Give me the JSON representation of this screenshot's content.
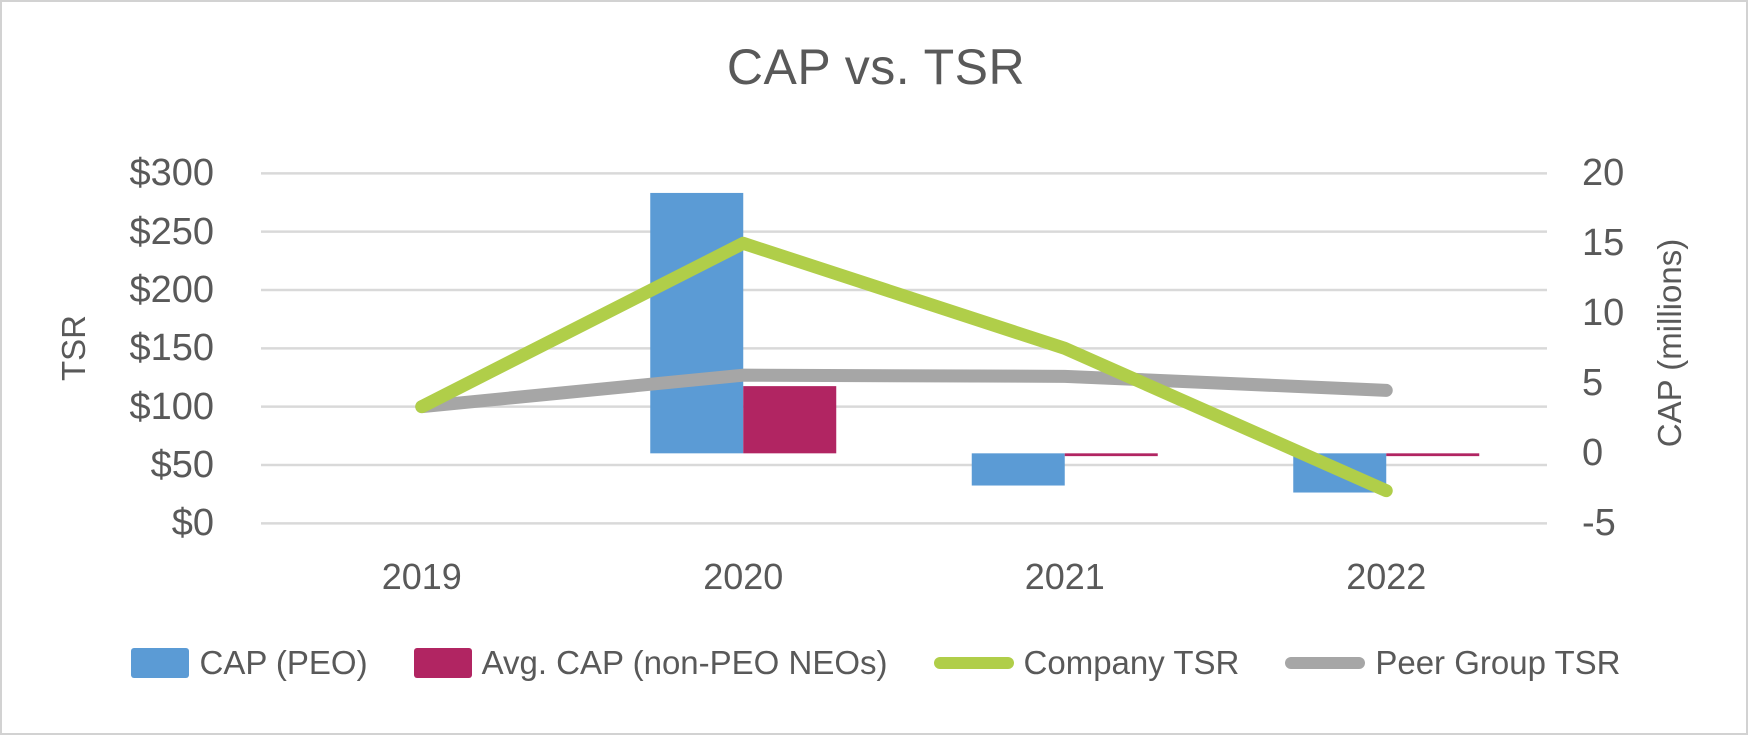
{
  "title": "CAP vs. TSR",
  "chart_data": {
    "type": "combo-bar-line",
    "categories": [
      "2019",
      "2020",
      "2021",
      "2022"
    ],
    "bar_series": [
      {
        "name": "CAP (PEO)",
        "color": "#5B9BD5",
        "axis": "secondary",
        "values": [
          null,
          18.6,
          -2.3,
          -2.8
        ]
      },
      {
        "name": "Avg. CAP (non-PEO NEOs)",
        "color": "#B12562",
        "axis": "secondary",
        "values": [
          null,
          4.8,
          -0.2,
          -0.2
        ]
      }
    ],
    "line_series": [
      {
        "name": "Company TSR",
        "color": "#B0CE49",
        "axis": "primary",
        "values": [
          100,
          240,
          150,
          28
        ]
      },
      {
        "name": "Peer Group TSR",
        "color": "#A6A6A6",
        "axis": "primary",
        "values": [
          100,
          127,
          126,
          114
        ]
      }
    ],
    "primary_axis": {
      "title": "TSR",
      "min": 0,
      "max": 300,
      "step": 50,
      "ticks": [
        "$300",
        "$250",
        "$200",
        "$150",
        "$100",
        "$50",
        "$0"
      ]
    },
    "secondary_axis": {
      "title": "CAP (millions)",
      "min": -5,
      "max": 20,
      "step": 5,
      "ticks": [
        "20",
        "15",
        "10",
        "5",
        "0",
        "-5"
      ]
    },
    "legend_position": "bottom",
    "grid": "horizontal",
    "gridline_color": "#D9D9D9",
    "text_color": "#595959"
  }
}
